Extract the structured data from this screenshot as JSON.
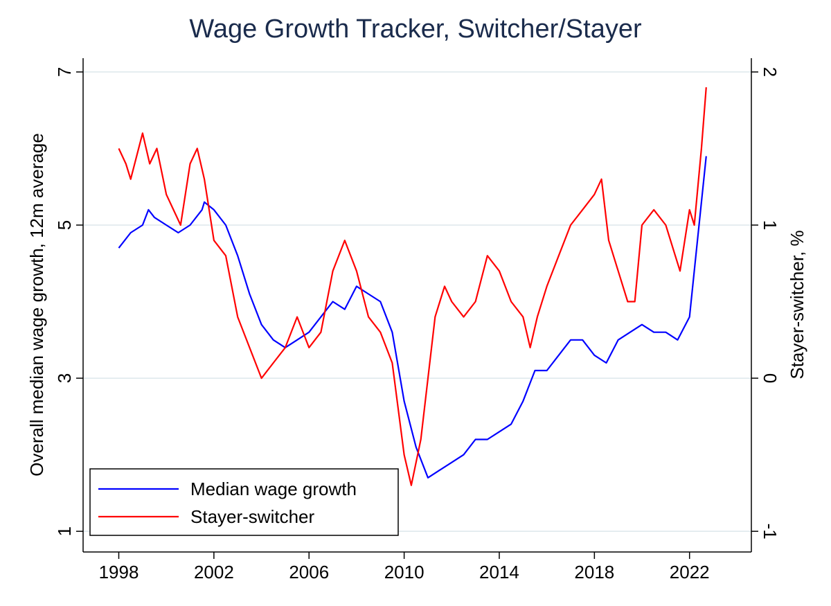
{
  "chart_data": {
    "type": "line",
    "title": "Wage Growth Tracker, Switcher/Stayer",
    "ylabel": "Overall median wage growth, 12m average",
    "y2label": "Stayer-switcher, %",
    "xlim": [
      1996.5,
      2024.6
    ],
    "xticks": [
      1998,
      2002,
      2006,
      2010,
      2014,
      2018,
      2022
    ],
    "ylim": [
      0.73,
      7.18
    ],
    "yticks": [
      1,
      3,
      5,
      7
    ],
    "y2lim": [
      -1.135,
      2.09
    ],
    "y2ticks": [
      -1,
      0,
      1,
      2
    ],
    "grid": true,
    "legend": "lower left",
    "series": [
      {
        "name": "Median wage growth",
        "color": "#0000ff",
        "x": [
          1998,
          1998.5,
          1999,
          1999.25,
          1999.5,
          2000,
          2000.5,
          2001,
          2001.5,
          2001.6,
          2002,
          2002.5,
          2003,
          2003.5,
          2004,
          2004.5,
          2005,
          2005.5,
          2006,
          2006.5,
          2007,
          2007.5,
          2008,
          2008.5,
          2009,
          2009.5,
          2010,
          2010.5,
          2011,
          2011.5,
          2012,
          2012.5,
          2013,
          2013.5,
          2014,
          2014.5,
          2015,
          2015.5,
          2016,
          2016.5,
          2017,
          2017.5,
          2018,
          2018.5,
          2019,
          2019.5,
          2020,
          2020.5,
          2021,
          2021.5,
          2022,
          2022.3,
          2022.7
        ],
        "values": [
          4.7,
          4.9,
          5.0,
          5.2,
          5.1,
          5.0,
          4.9,
          5.0,
          5.2,
          5.3,
          5.2,
          5.0,
          4.6,
          4.1,
          3.7,
          3.5,
          3.4,
          3.5,
          3.6,
          3.8,
          4.0,
          3.9,
          4.2,
          4.1,
          4.0,
          3.6,
          2.7,
          2.1,
          1.7,
          1.8,
          1.9,
          2.0,
          2.2,
          2.2,
          2.3,
          2.4,
          2.7,
          3.1,
          3.1,
          3.3,
          3.5,
          3.5,
          3.3,
          3.2,
          3.5,
          3.6,
          3.7,
          3.6,
          3.6,
          3.5,
          3.8,
          4.7,
          5.9
        ]
      },
      {
        "name": "Stayer-switcher",
        "color": "#ff0000",
        "axis": "y2",
        "x": [
          1998,
          1998.3,
          1998.5,
          1999,
          1999.3,
          1999.6,
          2000,
          2000.3,
          2000.6,
          2001,
          2001.3,
          2001.6,
          2002,
          2002.5,
          2003,
          2003.5,
          2004,
          2004.5,
          2005,
          2005.5,
          2006,
          2006.5,
          2007,
          2007.5,
          2008,
          2008.5,
          2009,
          2009.5,
          2010,
          2010.3,
          2010.7,
          2011,
          2011.3,
          2011.7,
          2012,
          2012.5,
          2013,
          2013.5,
          2014,
          2014.5,
          2015,
          2015.3,
          2015.6,
          2016,
          2016.5,
          2017,
          2017.5,
          2018,
          2018.3,
          2018.6,
          2019,
          2019.4,
          2019.7,
          2020,
          2020.5,
          2021,
          2021.4,
          2021.6,
          2022,
          2022.2,
          2022.5,
          2022.7
        ],
        "values": [
          1.5,
          1.4,
          1.3,
          1.6,
          1.4,
          1.5,
          1.2,
          1.1,
          1.0,
          1.4,
          1.5,
          1.3,
          0.9,
          0.8,
          0.4,
          0.2,
          0.0,
          0.1,
          0.2,
          0.4,
          0.2,
          0.3,
          0.7,
          0.9,
          0.7,
          0.4,
          0.3,
          0.1,
          -0.5,
          -0.7,
          -0.4,
          0.0,
          0.4,
          0.6,
          0.5,
          0.4,
          0.5,
          0.8,
          0.7,
          0.5,
          0.4,
          0.2,
          0.4,
          0.6,
          0.8,
          1.0,
          1.1,
          1.2,
          1.3,
          0.9,
          0.7,
          0.5,
          0.5,
          1.0,
          1.1,
          1.0,
          0.8,
          0.7,
          1.1,
          1.0,
          1.5,
          1.9
        ]
      }
    ]
  }
}
